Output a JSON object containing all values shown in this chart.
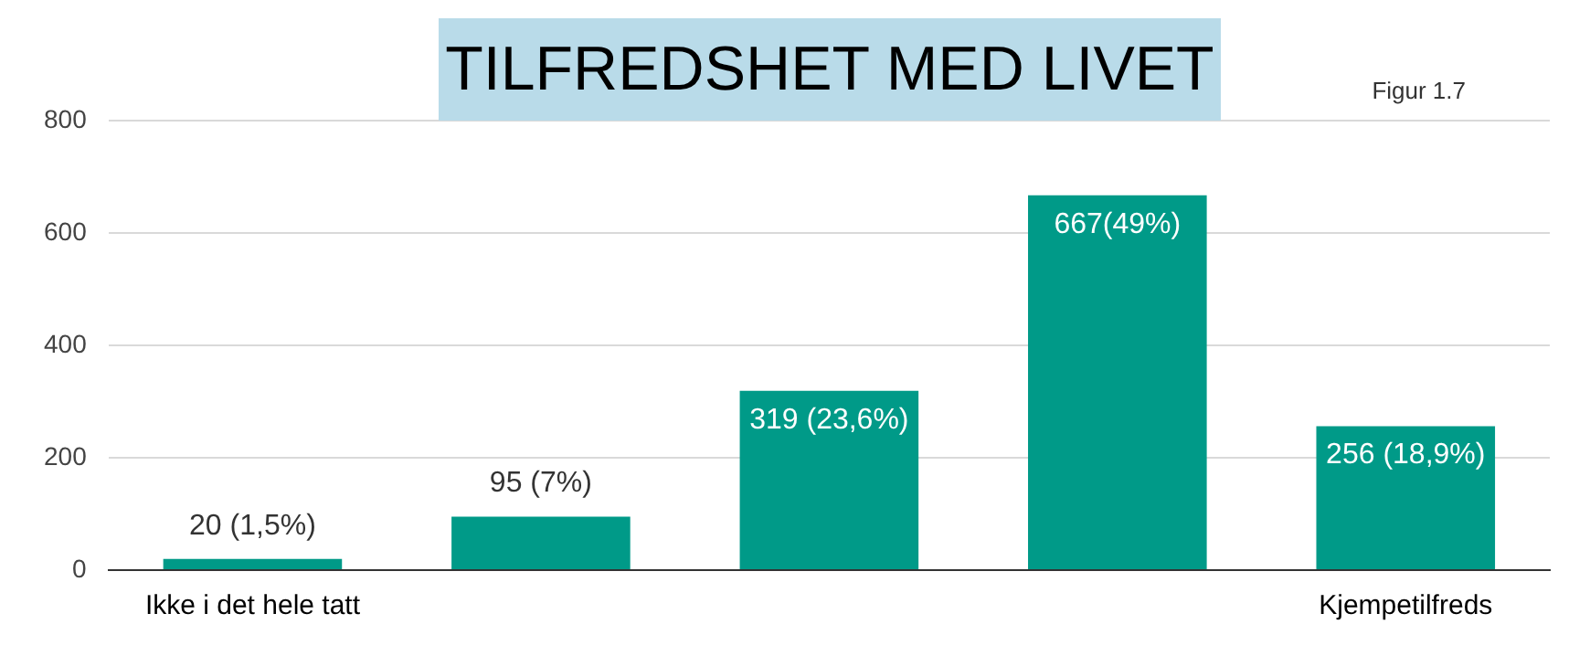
{
  "chart_data": {
    "type": "bar",
    "title": "TILFREDSHET MED LIVET",
    "annotations": [
      "Figur 1.7"
    ],
    "categories": [
      "Ikke i det hele tatt",
      null,
      null,
      null,
      "Kjempetilfreds"
    ],
    "values": [
      20,
      95,
      319,
      667,
      256
    ],
    "value_labels": [
      "20 (1,5%)",
      "95 (7%)",
      "319 (23,6%)",
      "667(49%)",
      "256 (18,9%)"
    ],
    "color": "#009a88",
    "ylim": [
      0,
      800
    ],
    "yticks": [
      0,
      200,
      400,
      600,
      800
    ],
    "grid": "y",
    "legend": false
  }
}
